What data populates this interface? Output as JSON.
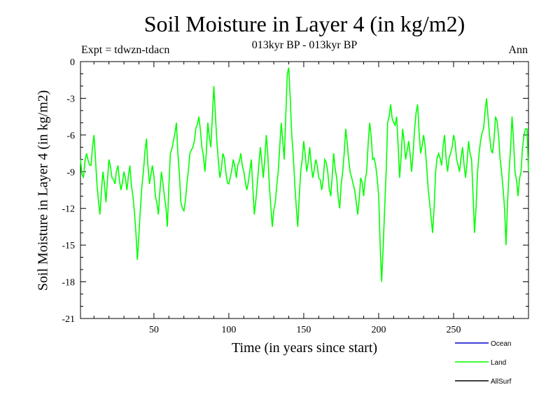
{
  "chart_data": {
    "type": "line",
    "title": "Soil Moisture in Layer 4 (in kg/m2)",
    "subtitle": "013kyr BP - 013kyr BP",
    "experiment": "Expt = tdwzn-tdacn",
    "period": "Ann",
    "xlabel": "Time (in years since start)",
    "ylabel": "Soil Moisture in Layer 4 (in kg/m2)",
    "xlim": [
      1,
      300
    ],
    "ylim": [
      -21,
      0
    ],
    "xticks": [
      50,
      100,
      150,
      200,
      250
    ],
    "yticks": [
      0,
      -3,
      -6,
      -9,
      -12,
      -15,
      -18,
      -21
    ],
    "ytick_labels": [
      "0",
      "-3",
      "-6",
      "-9",
      "-12",
      "-15",
      "-18",
      "-21"
    ],
    "xtick_labels": [
      "50",
      "100",
      "150",
      "200",
      "250"
    ],
    "legend_position": "bottom-right",
    "series": [
      {
        "name": "Ocean",
        "color": "#0000cc",
        "values": []
      },
      {
        "name": "Land",
        "color": "#00ff00",
        "keypoints": [
          [
            1,
            -8
          ],
          [
            3,
            -9.5
          ],
          [
            5,
            -7.5
          ],
          [
            8,
            -8.5
          ],
          [
            10,
            -6
          ],
          [
            12,
            -10
          ],
          [
            14,
            -12.5
          ],
          [
            16,
            -9
          ],
          [
            18,
            -11.5
          ],
          [
            20,
            -8
          ],
          [
            22,
            -9.5
          ],
          [
            24,
            -10
          ],
          [
            26,
            -8.5
          ],
          [
            28,
            -10.5
          ],
          [
            30,
            -9
          ],
          [
            32,
            -10.5
          ],
          [
            34,
            -8.5
          ],
          [
            36,
            -11
          ],
          [
            38,
            -14
          ],
          [
            39,
            -16.2
          ],
          [
            41,
            -12
          ],
          [
            43,
            -9
          ],
          [
            45,
            -6.3
          ],
          [
            47,
            -10
          ],
          [
            49,
            -8.5
          ],
          [
            51,
            -11
          ],
          [
            53,
            -12.5
          ],
          [
            55,
            -9
          ],
          [
            57,
            -11
          ],
          [
            59,
            -13.5
          ],
          [
            61,
            -7.5
          ],
          [
            63,
            -6.5
          ],
          [
            65,
            -5
          ],
          [
            66,
            -7.5
          ],
          [
            68,
            -11.5
          ],
          [
            70,
            -12.2
          ],
          [
            72,
            -10
          ],
          [
            74,
            -7.5
          ],
          [
            77,
            -6.5
          ],
          [
            80,
            -4.5
          ],
          [
            82,
            -7
          ],
          [
            84,
            -9
          ],
          [
            86,
            -5
          ],
          [
            88,
            -7
          ],
          [
            90,
            -2
          ],
          [
            92,
            -6.5
          ],
          [
            94,
            -9.5
          ],
          [
            96,
            -7.5
          ],
          [
            98,
            -9
          ],
          [
            100,
            -10
          ],
          [
            103,
            -8
          ],
          [
            105,
            -9.5
          ],
          [
            108,
            -7.5
          ],
          [
            110,
            -9
          ],
          [
            112,
            -10.5
          ],
          [
            115,
            -8
          ],
          [
            117,
            -12.5
          ],
          [
            119,
            -10
          ],
          [
            121,
            -7
          ],
          [
            123,
            -9.5
          ],
          [
            125,
            -6
          ],
          [
            127,
            -10
          ],
          [
            129,
            -13.5
          ],
          [
            131,
            -11.5
          ],
          [
            133,
            -9
          ],
          [
            135,
            -5
          ],
          [
            137,
            -8
          ],
          [
            139,
            -1
          ],
          [
            140,
            -0.5
          ],
          [
            142,
            -6
          ],
          [
            144,
            -10
          ],
          [
            146,
            -13.5
          ],
          [
            148,
            -9
          ],
          [
            150,
            -6.5
          ],
          [
            152,
            -9
          ],
          [
            154,
            -7
          ],
          [
            156,
            -9.5
          ],
          [
            158,
            -8
          ],
          [
            160,
            -9.5
          ],
          [
            162,
            -10.5
          ],
          [
            164,
            -8
          ],
          [
            166,
            -9
          ],
          [
            168,
            -11
          ],
          [
            170,
            -7.5
          ],
          [
            172,
            -9.5
          ],
          [
            174,
            -12
          ],
          [
            176,
            -9
          ],
          [
            178,
            -5.5
          ],
          [
            180,
            -8
          ],
          [
            182,
            -9.5
          ],
          [
            184,
            -10.5
          ],
          [
            186,
            -12.5
          ],
          [
            188,
            -9.5
          ],
          [
            190,
            -11
          ],
          [
            192,
            -9
          ],
          [
            194,
            -5
          ],
          [
            196,
            -8
          ],
          [
            198,
            -8.5
          ],
          [
            200,
            -11
          ],
          [
            201,
            -15
          ],
          [
            202,
            -18
          ],
          [
            204,
            -12
          ],
          [
            206,
            -5
          ],
          [
            208,
            -3.5
          ],
          [
            210,
            -5
          ],
          [
            212,
            -4.5
          ],
          [
            214,
            -9.5
          ],
          [
            216,
            -5.5
          ],
          [
            218,
            -8
          ],
          [
            220,
            -6.5
          ],
          [
            222,
            -9
          ],
          [
            224,
            -5.5
          ],
          [
            226,
            -3.5
          ],
          [
            228,
            -7.5
          ],
          [
            230,
            -6
          ],
          [
            232,
            -8.5
          ],
          [
            234,
            -11.5
          ],
          [
            236,
            -14
          ],
          [
            238,
            -9
          ],
          [
            240,
            -7.5
          ],
          [
            242,
            -8.5
          ],
          [
            244,
            -6
          ],
          [
            246,
            -9
          ],
          [
            248,
            -7.5
          ],
          [
            250,
            -6
          ],
          [
            252,
            -8
          ],
          [
            254,
            -9
          ],
          [
            256,
            -7
          ],
          [
            258,
            -9.5
          ],
          [
            260,
            -6.5
          ],
          [
            262,
            -8
          ],
          [
            264,
            -14
          ],
          [
            266,
            -9
          ],
          [
            268,
            -6.5
          ],
          [
            270,
            -5.5
          ],
          [
            272,
            -3
          ],
          [
            274,
            -6
          ],
          [
            276,
            -7.5
          ],
          [
            278,
            -4.5
          ],
          [
            280,
            -6
          ],
          [
            282,
            -9
          ],
          [
            284,
            -12
          ],
          [
            285,
            -15
          ],
          [
            287,
            -9
          ],
          [
            289,
            -4.5
          ],
          [
            291,
            -9
          ],
          [
            293,
            -11
          ],
          [
            295,
            -9
          ],
          [
            297,
            -6
          ],
          [
            299,
            -5.5
          ],
          [
            300,
            -9
          ]
        ]
      },
      {
        "name": "AllSurf",
        "color": "#000000",
        "values": []
      }
    ]
  }
}
